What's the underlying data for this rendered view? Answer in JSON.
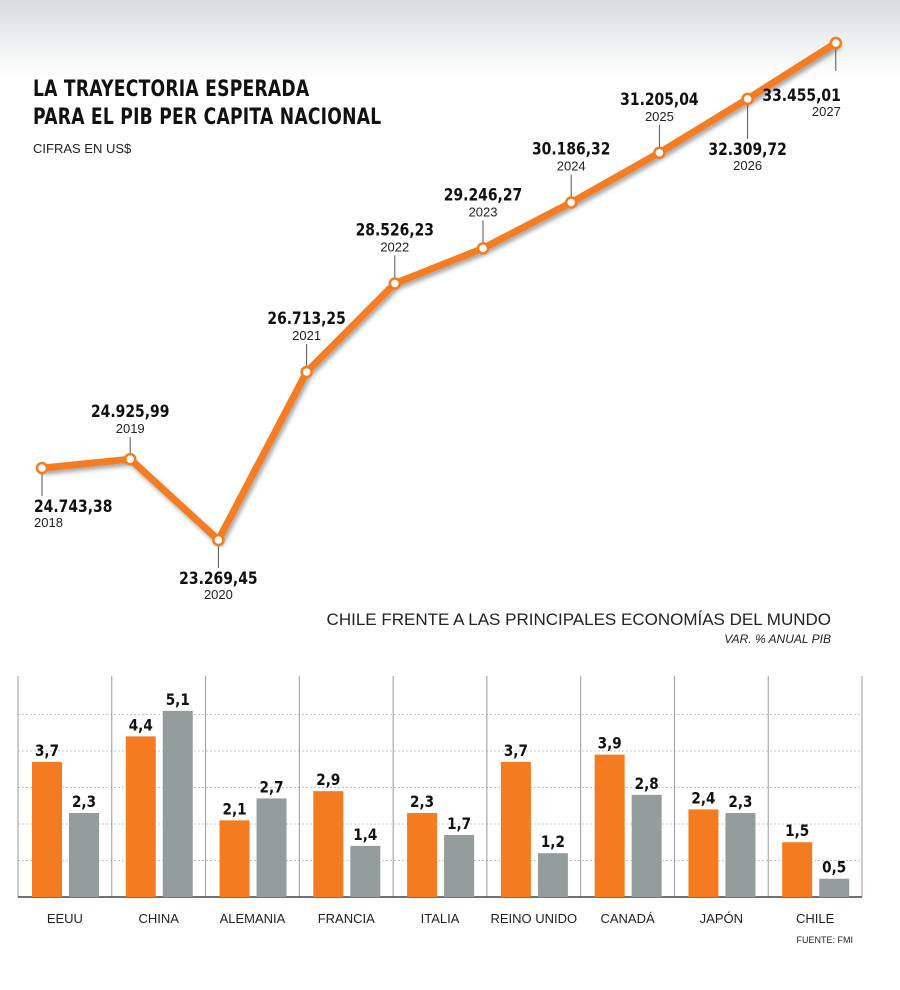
{
  "header": {
    "title_line1": "LA TRAYECTORIA ESPERADA",
    "title_line2": "PARA EL PIB PER CAPITA NACIONAL",
    "subtitle": "CIFRAS EN US$"
  },
  "bars_header": {
    "title": "CHILE FRENTE A LAS PRINCIPALES ECONOMÍAS DEL MUNDO",
    "subtitle": "VAR. % ANUAL PIB"
  },
  "source": "FUENTE: FMI",
  "colors": {
    "orange": "#f47b20",
    "gray": "#959c9c",
    "text": "#111111",
    "grid": "#c4c4c4"
  },
  "chart_data": [
    {
      "type": "line",
      "title": "LA TRAYECTORIA ESPERADA PARA EL PIB PER CAPITA NACIONAL",
      "subtitle": "CIFRAS EN US$",
      "x": [
        "2018",
        "2019",
        "2020",
        "2021",
        "2022",
        "2023",
        "2024",
        "2025",
        "2026",
        "2027"
      ],
      "values": [
        24743.38,
        24925.99,
        23269.45,
        26713.25,
        28526.23,
        29246.27,
        30186.32,
        31205.04,
        32309.72,
        33455.01
      ],
      "labels": [
        "24.743,38",
        "24.925,99",
        "23.269,45",
        "26.713,25",
        "28.526,23",
        "29.246,27",
        "30.186,32",
        "31.205,04",
        "32.309,72",
        "33.455,01"
      ],
      "grid": false
    },
    {
      "type": "bar",
      "title": "CHILE FRENTE A LAS PRINCIPALES ECONOMÍAS DEL MUNDO",
      "subtitle": "VAR. % ANUAL PIB",
      "categories": [
        "EEUU",
        "CHINA",
        "ALEMANIA",
        "FRANCIA",
        "ITALIA",
        "REINO UNIDO",
        "CANADÁ",
        "JAPÓN",
        "CHILE"
      ],
      "series": [
        {
          "values": [
            3.7,
            4.4,
            2.1,
            2.9,
            2.3,
            3.7,
            3.9,
            2.4,
            1.5
          ],
          "labels": [
            "3,7",
            "4,4",
            "2,1",
            "2,9",
            "2,3",
            "3,7",
            "3,9",
            "2,4",
            "1,5"
          ]
        },
        {
          "values": [
            2.3,
            5.1,
            2.7,
            1.4,
            1.7,
            1.2,
            2.8,
            2.3,
            0.5
          ],
          "labels": [
            "2,3",
            "5,1",
            "2,7",
            "1,4",
            "1,7",
            "1,2",
            "2,8",
            "2,3",
            "0,5"
          ]
        }
      ],
      "ylim": [
        0,
        5.5
      ],
      "grid": true
    }
  ]
}
